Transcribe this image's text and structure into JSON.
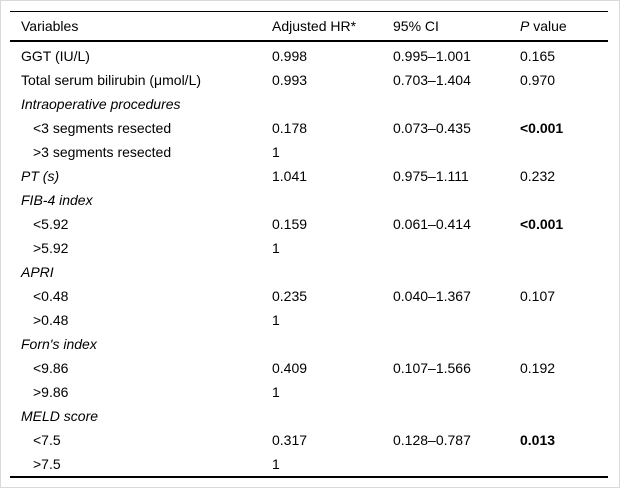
{
  "table": {
    "headers": {
      "variables": "Variables",
      "adjusted_hr": "Adjusted HR*",
      "ci": "95% CI",
      "p_italic": "P",
      "p_rest": " value"
    },
    "rows": [
      {
        "variable": "GGT (IU/L)",
        "italic": false,
        "indent": false,
        "hr": "0.998",
        "ci": "0.995–1.001",
        "p": "0.165",
        "p_bold": false
      },
      {
        "variable": "Total serum bilirubin (μmol/L)",
        "italic": false,
        "indent": false,
        "hr": "0.993",
        "ci": "0.703–1.404",
        "p": "0.970",
        "p_bold": false
      },
      {
        "variable": "Intraoperative procedures",
        "italic": true,
        "indent": false,
        "hr": "",
        "ci": "",
        "p": "",
        "p_bold": false
      },
      {
        "variable": "<3 segments resected",
        "italic": false,
        "indent": true,
        "hr": "0.178",
        "ci": "0.073–0.435",
        "p": "<0.001",
        "p_bold": true
      },
      {
        "variable": ">3 segments resected",
        "italic": false,
        "indent": true,
        "hr": "1",
        "ci": "",
        "p": "",
        "p_bold": false
      },
      {
        "variable": "PT (s)",
        "italic": true,
        "indent": false,
        "hr": "1.041",
        "ci": "0.975–1.111",
        "p": "0.232",
        "p_bold": false
      },
      {
        "variable": "FIB-4 index",
        "italic": true,
        "indent": false,
        "hr": "",
        "ci": "",
        "p": "",
        "p_bold": false
      },
      {
        "variable": "<5.92",
        "italic": false,
        "indent": true,
        "hr": "0.159",
        "ci": "0.061–0.414",
        "p": "<0.001",
        "p_bold": true
      },
      {
        "variable": ">5.92",
        "italic": false,
        "indent": true,
        "hr": "1",
        "ci": "",
        "p": "",
        "p_bold": false
      },
      {
        "variable": "APRI",
        "italic": true,
        "indent": false,
        "hr": "",
        "ci": "",
        "p": "",
        "p_bold": false
      },
      {
        "variable": "<0.48",
        "italic": false,
        "indent": true,
        "hr": "0.235",
        "ci": "0.040–1.367",
        "p": "0.107",
        "p_bold": false
      },
      {
        "variable": ">0.48",
        "italic": false,
        "indent": true,
        "hr": "1",
        "ci": "",
        "p": "",
        "p_bold": false
      },
      {
        "variable": "Forn's index",
        "italic": true,
        "indent": false,
        "hr": "",
        "ci": "",
        "p": "",
        "p_bold": false
      },
      {
        "variable": "<9.86",
        "italic": false,
        "indent": true,
        "hr": "0.409",
        "ci": "0.107–1.566",
        "p": "0.192",
        "p_bold": false
      },
      {
        "variable": ">9.86",
        "italic": false,
        "indent": true,
        "hr": "1",
        "ci": "",
        "p": "",
        "p_bold": false
      },
      {
        "variable": "MELD score",
        "italic": true,
        "indent": false,
        "hr": "",
        "ci": "",
        "p": "",
        "p_bold": false
      },
      {
        "variable": "<7.5",
        "italic": false,
        "indent": true,
        "hr": "0.317",
        "ci": "0.128–0.787",
        "p": "0.013",
        "p_bold": true
      },
      {
        "variable": ">7.5",
        "italic": false,
        "indent": true,
        "hr": "1",
        "ci": "",
        "p": "",
        "p_bold": false
      }
    ]
  }
}
